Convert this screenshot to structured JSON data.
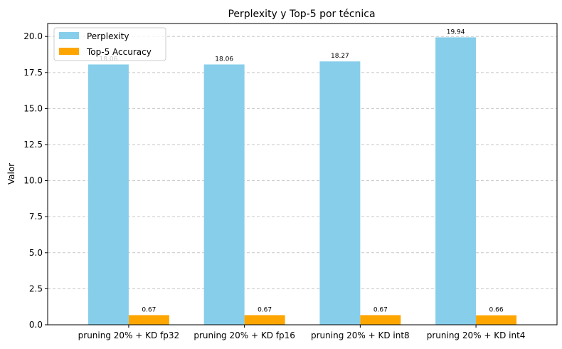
{
  "chart_data": {
    "type": "bar",
    "title": "Perplexity y Top-5 por técnica",
    "xlabel": "",
    "ylabel": "Valor",
    "ylim": [
      0,
      20.9
    ],
    "yticks": [
      "0.0",
      "2.5",
      "5.0",
      "7.5",
      "10.0",
      "12.5",
      "15.0",
      "17.5",
      "20.0"
    ],
    "grid": "horizontal dashed",
    "legend_position": "upper-left",
    "categories": [
      "pruning 20% + KD fp32",
      "pruning 20% + KD fp16",
      "pruning 20% + KD int8",
      "pruning 20% + KD int4"
    ],
    "series": [
      {
        "name": "Perplexity",
        "color": "#87ceeb",
        "values": [
          18.06,
          18.06,
          18.27,
          19.94
        ],
        "labels": [
          "18.06",
          "18.06",
          "18.27",
          "19.94"
        ]
      },
      {
        "name": "Top-5 Accuracy",
        "color": "#ffa500",
        "values": [
          0.67,
          0.67,
          0.67,
          0.66
        ],
        "labels": [
          "0.67",
          "0.67",
          "0.67",
          "0.66"
        ]
      }
    ]
  }
}
